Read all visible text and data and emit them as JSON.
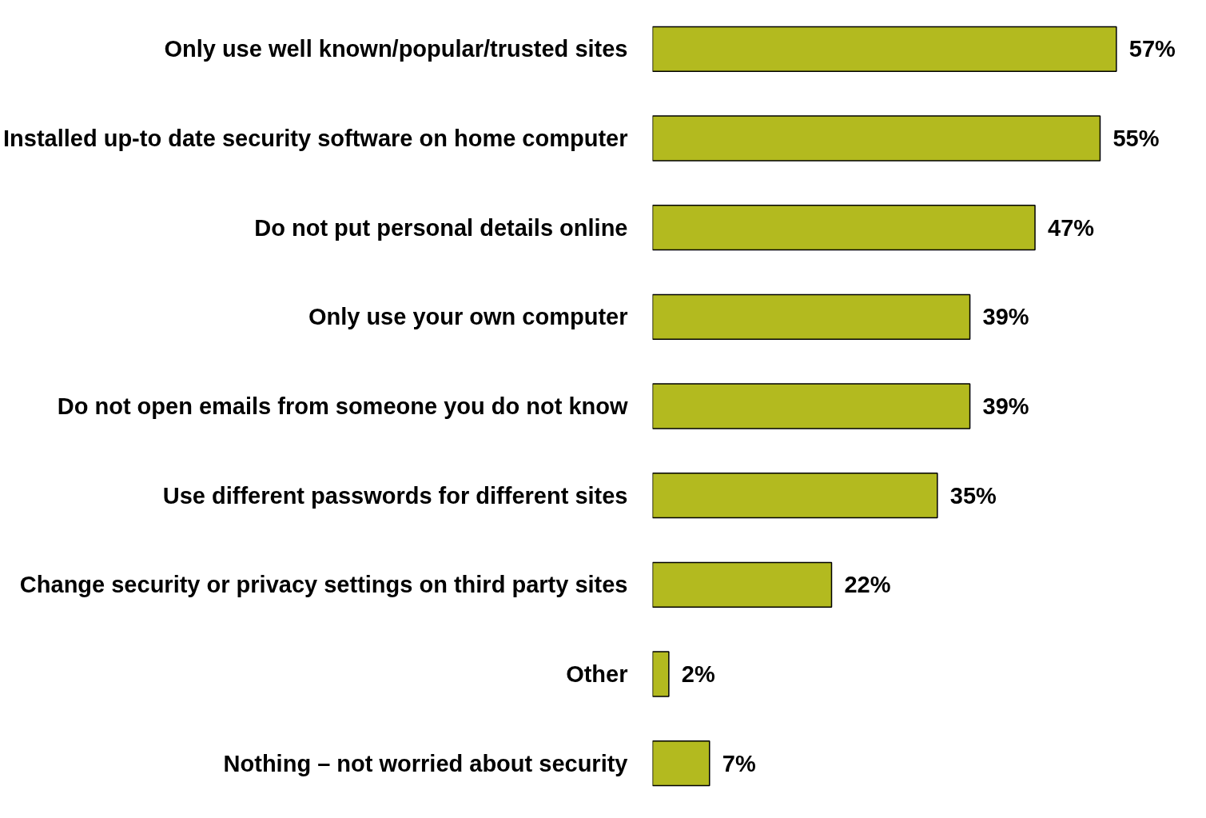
{
  "chart_data": {
    "type": "bar",
    "orientation": "horizontal",
    "categories": [
      "Only use well known/popular/trusted sites",
      "Installed up-to date security software on home computer",
      "Do not put personal details online",
      "Only use your own computer",
      "Do not open emails from someone you do not know",
      "Use different passwords for different sites",
      "Change security or privacy settings on third party sites",
      "Other",
      "Nothing – not worried about security"
    ],
    "values": [
      57,
      55,
      47,
      39,
      39,
      35,
      22,
      2,
      7
    ],
    "value_labels": [
      "57%",
      "55%",
      "47%",
      "39%",
      "39%",
      "35%",
      "22%",
      "2%",
      "7%"
    ],
    "color": "#b3ba1f",
    "grid": false,
    "tick_labels": "y"
  }
}
